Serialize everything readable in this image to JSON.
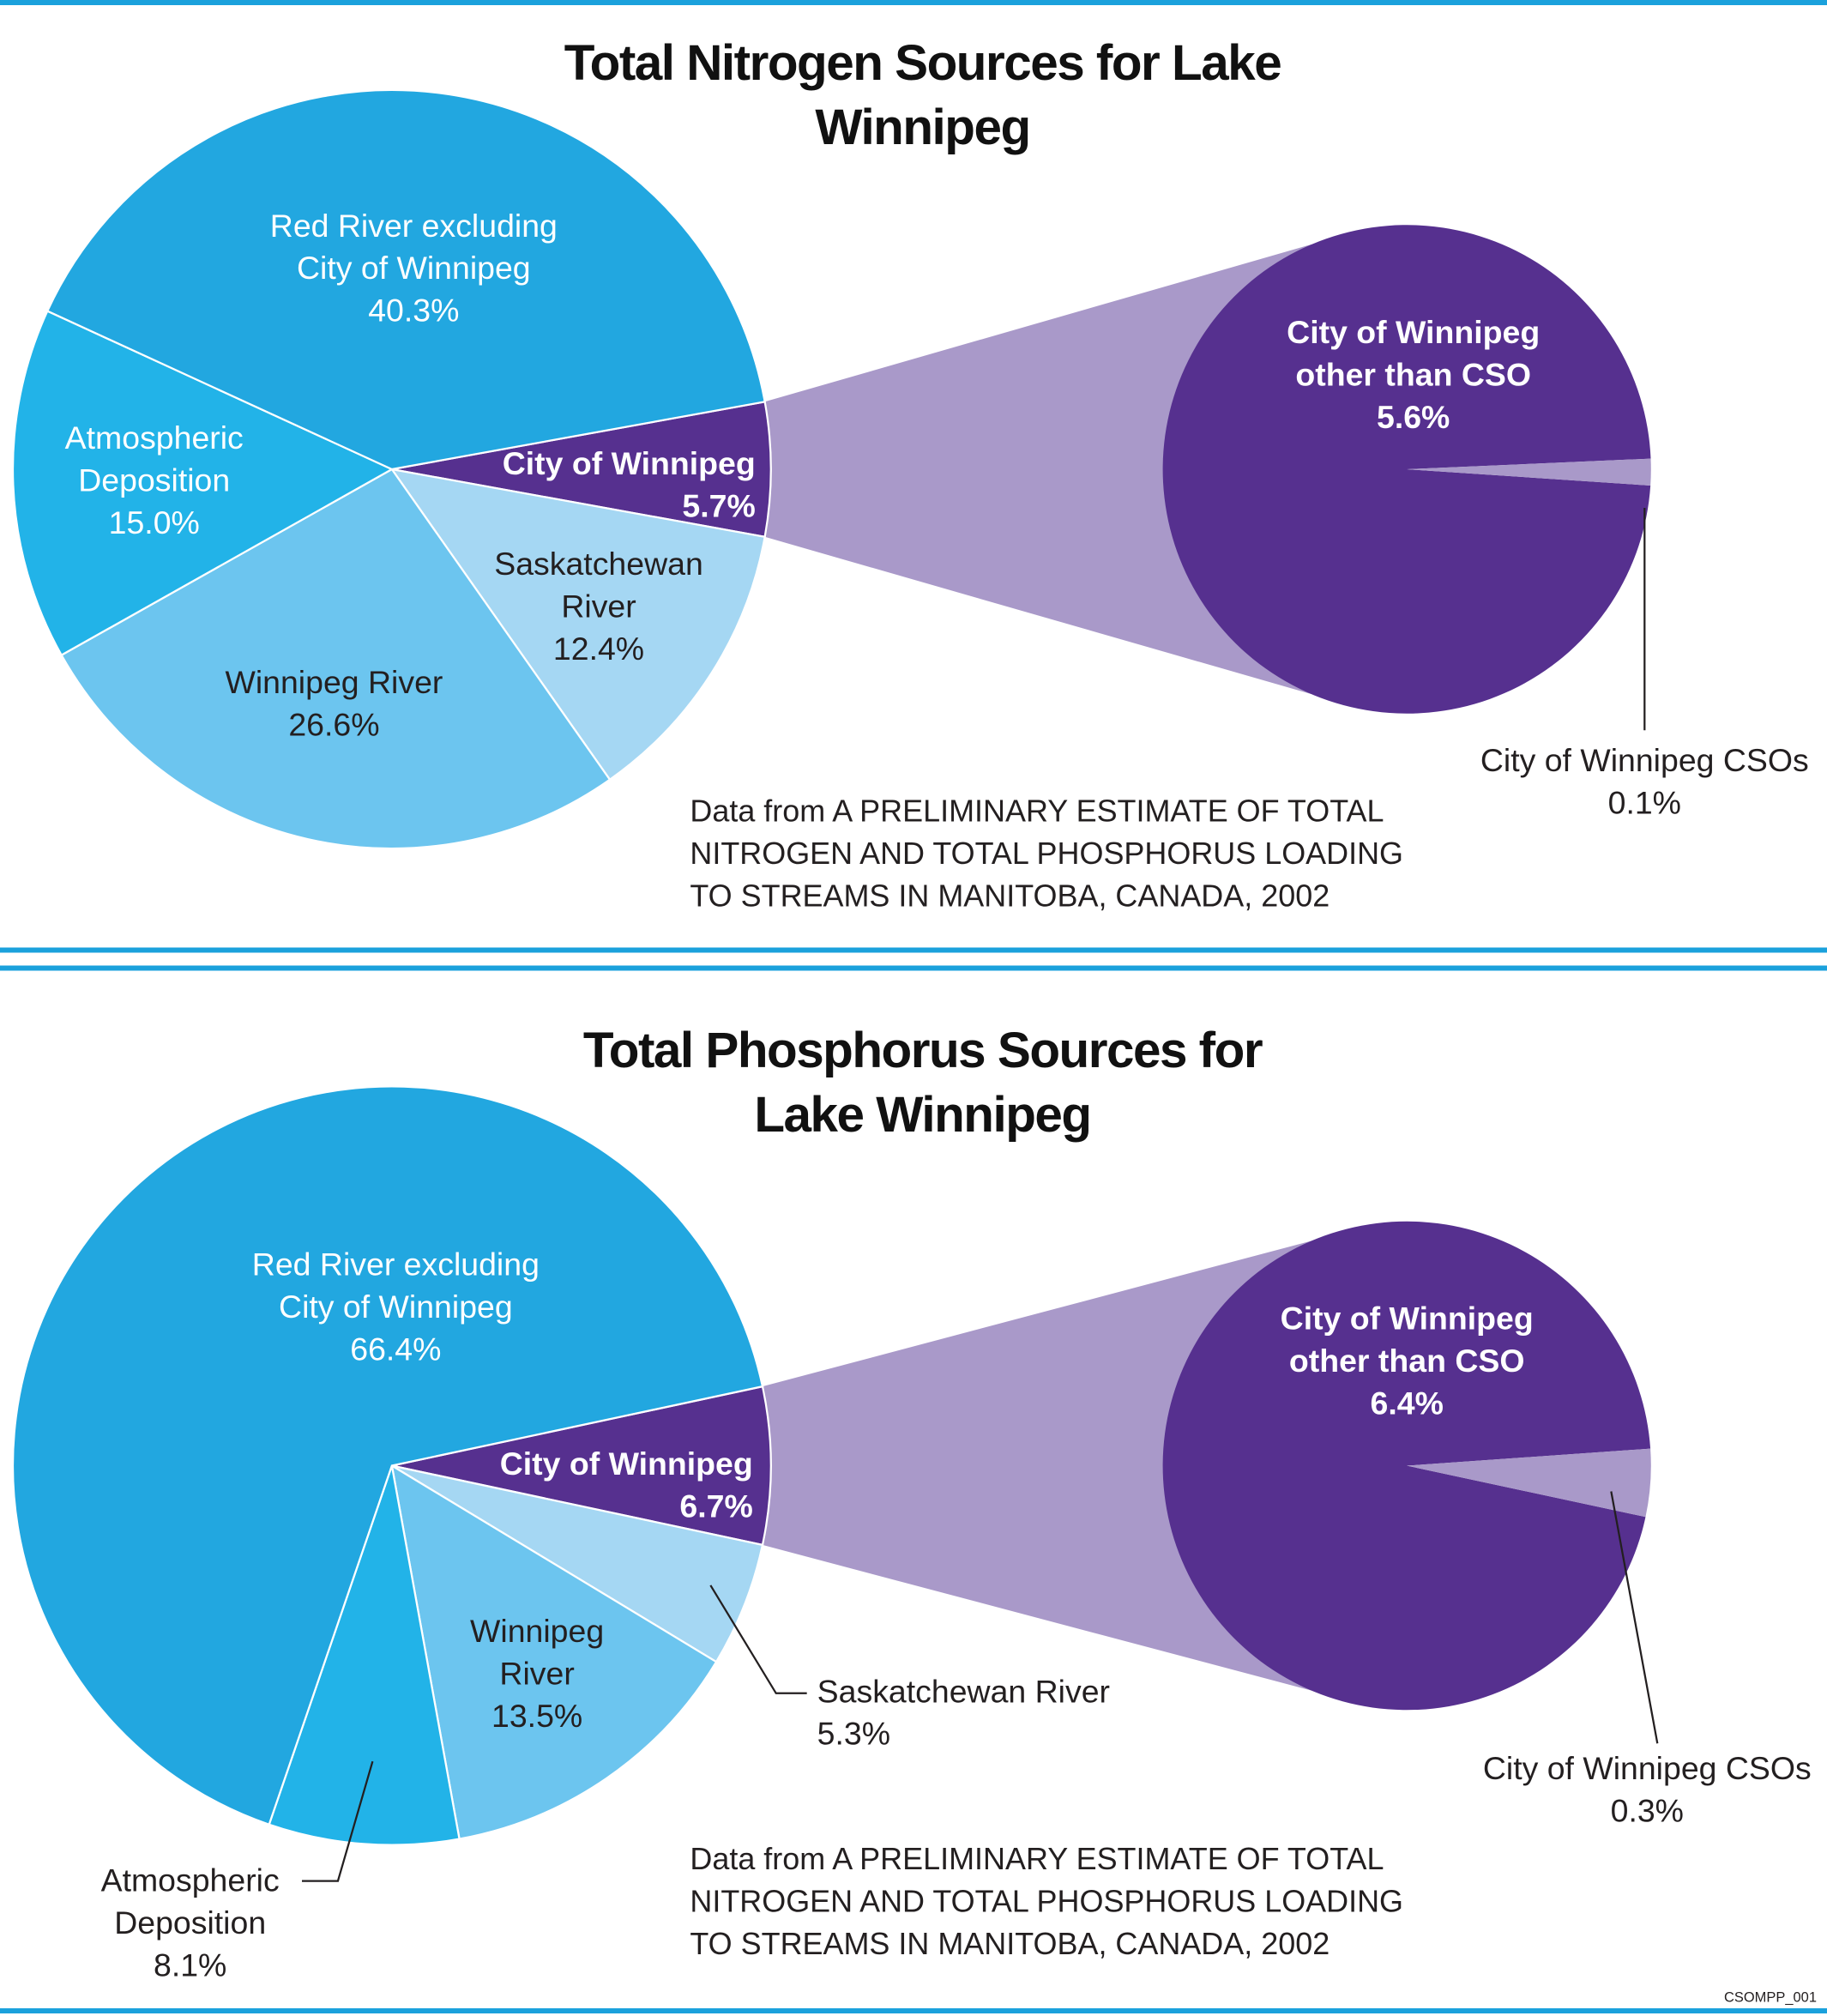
{
  "chart_data": [
    {
      "type": "pie-of-pie",
      "title": "Total Nitrogen Sources for Lake Winnipeg",
      "categories": [
        "City of Winnipeg",
        "Saskatchewan River",
        "Winnipeg River",
        "Atmospheric Deposition",
        "Red River excluding City of Winnipeg"
      ],
      "values": [
        5.7,
        12.4,
        26.6,
        15.0,
        40.3
      ],
      "value_labels": [
        "5.7%",
        "12.4%",
        "26.6%",
        "15.0%",
        "40.3%"
      ],
      "colors": [
        "#56308f",
        "#a5d7f3",
        "#6cc5ef",
        "#22b3e8",
        "#22a7e0"
      ],
      "sub_categories": [
        "City of Winnipeg other than CSO",
        "City of Winnipeg CSOs"
      ],
      "sub_values": [
        5.6,
        0.1
      ],
      "sub_value_labels": [
        "5.6%",
        "0.1%"
      ],
      "sub_colors": [
        "#56308f",
        "#a999c9"
      ],
      "note": "Data from A PRELIMINARY ESTIMATE OF TOTAL NITROGEN AND TOTAL PHOSPHORUS LOADING TO STREAMS IN MANITOBA, CANADA, 2002"
    },
    {
      "type": "pie-of-pie",
      "title": "Total Phosphorus Sources for Lake Winnipeg",
      "categories": [
        "City of Winnipeg",
        "Saskatchewan River",
        "Winnipeg River",
        "Atmospheric Deposition",
        "Red River excluding City of Winnipeg"
      ],
      "values": [
        6.7,
        5.3,
        13.5,
        8.1,
        66.4
      ],
      "value_labels": [
        "6.7%",
        "5.3%",
        "13.5%",
        "8.1%",
        "66.4%"
      ],
      "colors": [
        "#56308f",
        "#a5d7f3",
        "#6cc5ef",
        "#22b3e8",
        "#22a7e0"
      ],
      "sub_categories": [
        "City of Winnipeg other than CSO",
        "City of Winnipeg CSOs"
      ],
      "sub_values": [
        6.4,
        0.3
      ],
      "sub_value_labels": [
        "6.4%",
        "0.3%"
      ],
      "sub_colors": [
        "#56308f",
        "#a999c9"
      ],
      "note": "Data from A PRELIMINARY ESTIMATE OF TOTAL NITROGEN AND TOTAL PHOSPHORUS LOADING TO STREAMS IN MANITOBA, CANADA, 2002"
    }
  ],
  "footer": "CSOMPP_001"
}
